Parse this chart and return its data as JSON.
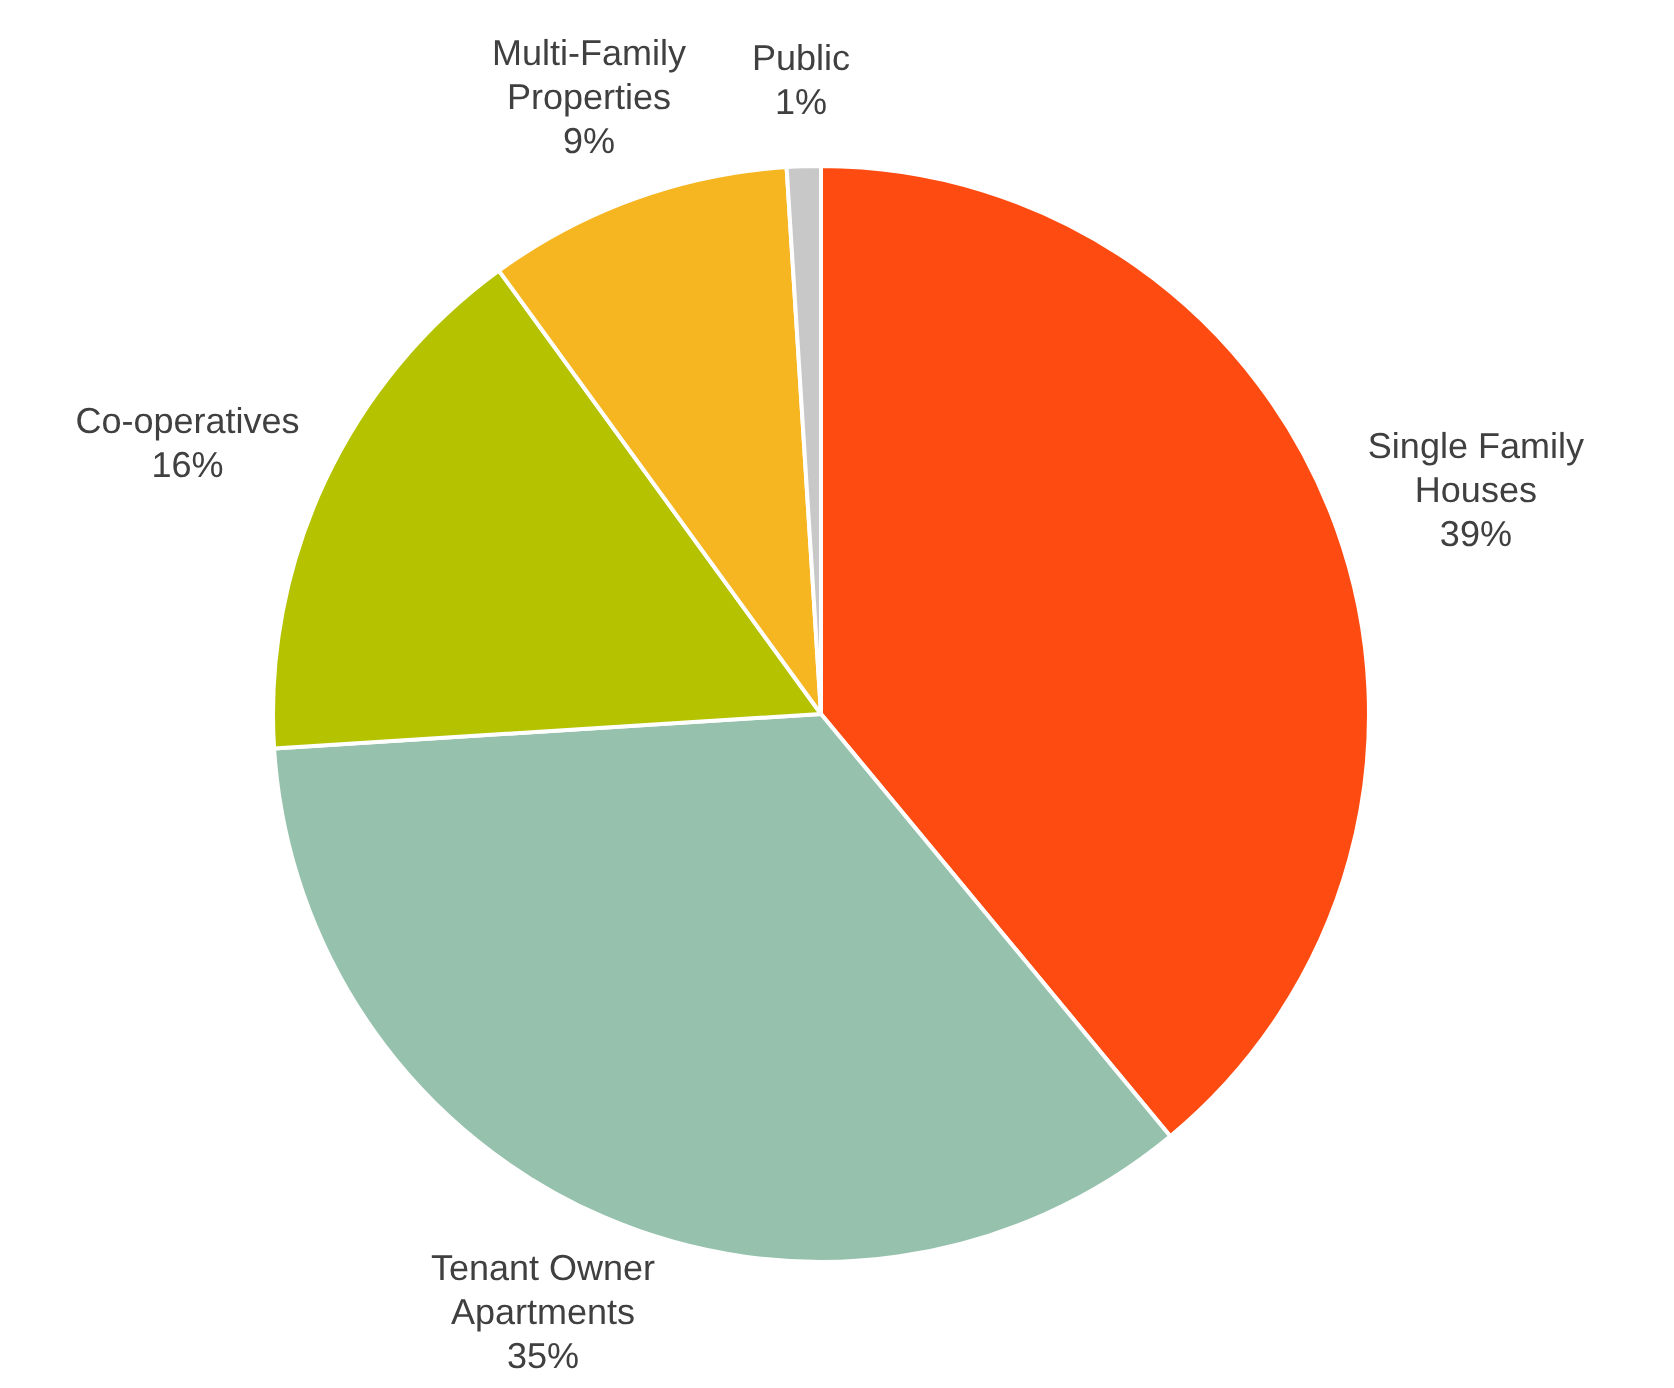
{
  "chart_data": {
    "type": "pie",
    "categories": [
      "Single Family Houses",
      "Tenant Owner Apartments",
      "Co-operatives",
      "Multi-Family Properties",
      "Public"
    ],
    "values": [
      39,
      35,
      16,
      9,
      1
    ],
    "colors": [
      "#fe4b12",
      "#96c2ad",
      "#b5c200",
      "#f5b621",
      "#c8c8c8"
    ],
    "value_labels": [
      "39%",
      "35%",
      "16%",
      "9%",
      "1%"
    ]
  }
}
